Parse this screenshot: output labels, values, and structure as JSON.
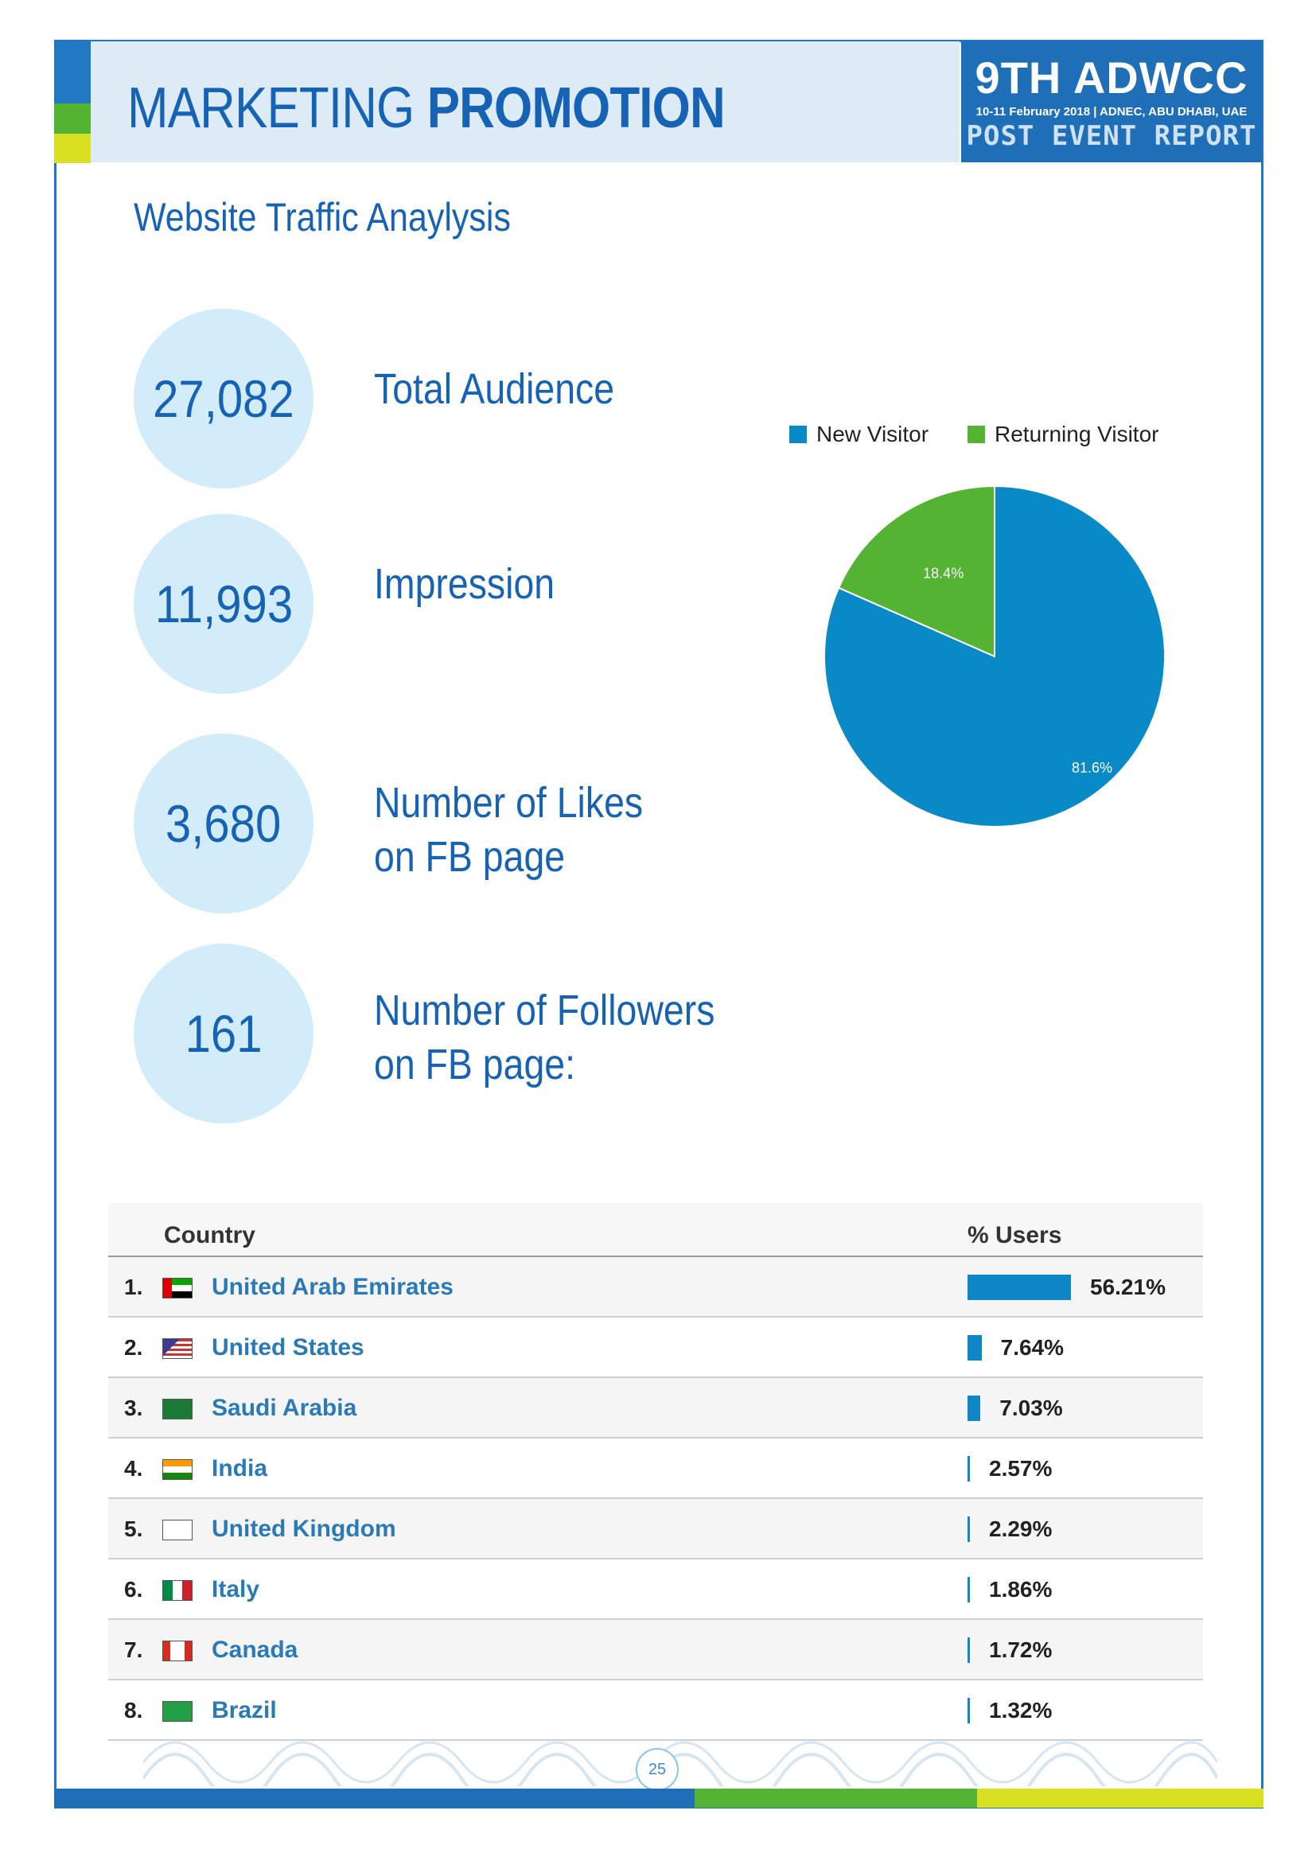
{
  "header": {
    "title_light": "MARKETING",
    "title_bold": "PROMOTION",
    "badge_line1": "9TH ADWCC",
    "badge_line2": "10-11 February 2018 | ADNEC, ABU DHABI, UAE",
    "badge_line3": "POST EVENT REPORT"
  },
  "subtitle": "Website Traffic Anaylysis",
  "stats": [
    {
      "value": "27,082",
      "label_line1": "Total Audience",
      "label_line2": ""
    },
    {
      "value": "11,993",
      "label_line1": "Impression",
      "label_line2": ""
    },
    {
      "value": "3,680",
      "label_line1": "Number of Likes",
      "label_line2": "on FB page"
    },
    {
      "value": "161",
      "label_line1": "Number of Followers",
      "label_line2": "on FB page:"
    }
  ],
  "chart_data": {
    "type": "pie",
    "series": [
      {
        "name": "New Visitor",
        "value": 81.6,
        "label": "81.6%",
        "color": "#0a89c7"
      },
      {
        "name": "Returning Visitor",
        "value": 18.4,
        "label": "18.4%",
        "color": "#54b332"
      }
    ],
    "legend": "top"
  },
  "table": {
    "col_country": "Country",
    "col_users": "% Users",
    "rows": [
      {
        "rank": "1.",
        "country": "United Arab Emirates",
        "pct": 56.21,
        "pct_label": "56.21%",
        "flag": "uae-flag"
      },
      {
        "rank": "2.",
        "country": "United States",
        "pct": 7.64,
        "pct_label": "7.64%",
        "flag": "us-flag"
      },
      {
        "rank": "3.",
        "country": "Saudi Arabia",
        "pct": 7.03,
        "pct_label": "7.03%",
        "flag": "saudi-flag"
      },
      {
        "rank": "4.",
        "country": "India",
        "pct": 2.57,
        "pct_label": "2.57%",
        "flag": "india-flag"
      },
      {
        "rank": "5.",
        "country": "United Kingdom",
        "pct": 2.29,
        "pct_label": "2.29%",
        "flag": "uk-flag"
      },
      {
        "rank": "6.",
        "country": "Italy",
        "pct": 1.86,
        "pct_label": "1.86%",
        "flag": "italy-flag"
      },
      {
        "rank": "7.",
        "country": "Canada",
        "pct": 1.72,
        "pct_label": "1.72%",
        "flag": "canada-flag"
      },
      {
        "rank": "8.",
        "country": "Brazil",
        "pct": 1.32,
        "pct_label": "1.32%",
        "flag": "brazil-flag"
      }
    ]
  },
  "page_number": "25",
  "colors": {
    "primary": "#1663b5",
    "green": "#54b332",
    "yellow": "#d9e021",
    "bar": "#0f87c6"
  }
}
